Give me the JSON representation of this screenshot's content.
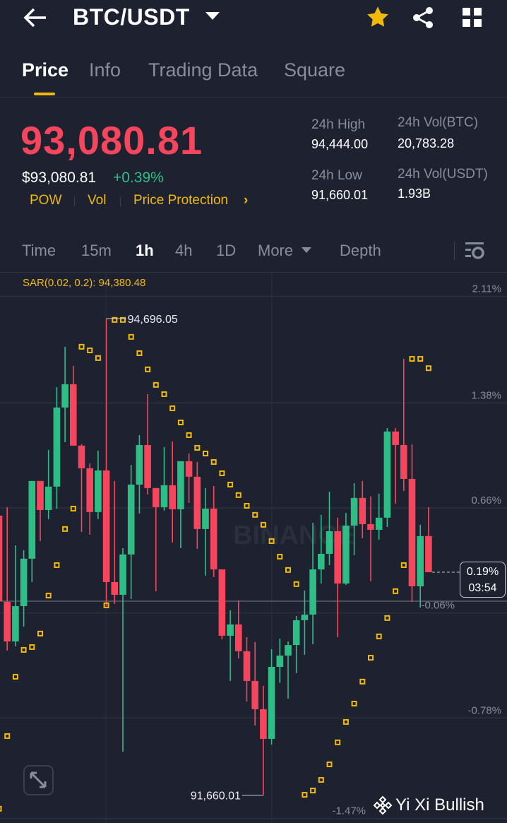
{
  "header": {
    "title": "BTC/USDT",
    "icons": [
      "back-arrow-icon",
      "caret-down-icon",
      "star-icon",
      "share-icon",
      "grid-icon"
    ],
    "favorite": true
  },
  "tabs": [
    {
      "label": "Price",
      "active": true
    },
    {
      "label": "Info"
    },
    {
      "label": "Trading Data"
    },
    {
      "label": "Square"
    }
  ],
  "ticker": {
    "last_price": "93,080.81",
    "fiat_price": "$93,080.81",
    "change": "+0.39%",
    "links": [
      "POW",
      "Vol",
      "Price Protection"
    ],
    "link_chevron": "›",
    "stats": {
      "high_label": "24h High",
      "high": "94,444.00",
      "low_label": "24h Low",
      "low": "91,660.01",
      "vol_btc_label": "24h Vol(BTC)",
      "vol_btc": "20,783.28",
      "vol_usdt_label": "24h Vol(USDT)",
      "vol_usdt": "1.93B"
    }
  },
  "timeframes": [
    {
      "label": "Time"
    },
    {
      "label": "15m"
    },
    {
      "label": "1h",
      "active": true
    },
    {
      "label": "4h"
    },
    {
      "label": "1D"
    },
    {
      "label": "More"
    },
    {
      "label": "Depth"
    }
  ],
  "colors": {
    "up": "#2ebd85",
    "down": "#f6465d",
    "accent": "#f0b90b",
    "background": "#1e2230"
  },
  "chart_data": {
    "type": "candlestick",
    "interval": "1h",
    "indicator_label": "SAR(0.02, 0.2): 94,380.48",
    "y_axis_labels": [
      "2.11%",
      "1.38%",
      "0.66%",
      "-0.06%",
      "-0.78%",
      "-1.47%"
    ],
    "y_axis_values_pct": [
      2.11,
      1.38,
      0.66,
      -0.06,
      -0.78,
      -1.47
    ],
    "max_label": "94,696.05",
    "min_label": "91,660.01",
    "current": {
      "price": 93080.81,
      "pct_label": "0.19%",
      "pct": 0.19,
      "countdown": "03:54"
    },
    "candles": [
      [
        93441,
        93463,
        92879,
        92897
      ],
      [
        92892,
        93495,
        92582,
        92640
      ],
      [
        92640,
        93252,
        92609,
        92865
      ],
      [
        92865,
        93221,
        92735,
        93167
      ],
      [
        93167,
        93662,
        93018,
        93662
      ],
      [
        93662,
        93662,
        93279,
        93477
      ],
      [
        93477,
        93860,
        93419,
        93626
      ],
      [
        93626,
        94260,
        93486,
        94130
      ],
      [
        94130,
        94517,
        93909,
        94278
      ],
      [
        94278,
        94395,
        93887,
        93887
      ],
      [
        93887,
        93896,
        93338,
        93743
      ],
      [
        93743,
        93774,
        93320,
        93464
      ],
      [
        93464,
        93855,
        93419,
        93729
      ],
      [
        93729,
        94696.05,
        92865,
        93018
      ],
      [
        93018,
        93662,
        92879,
        92937
      ],
      [
        92937,
        93234,
        91938,
        93194
      ],
      [
        93194,
        93765,
        92910,
        93639
      ],
      [
        93639,
        93954,
        93455,
        93891
      ],
      [
        93891,
        94215,
        93576,
        93617
      ],
      [
        93617,
        93617,
        92960,
        93495
      ],
      [
        93495,
        93878,
        93473,
        93635
      ],
      [
        93635,
        93914,
        93270,
        93482
      ],
      [
        93482,
        93788,
        93234,
        93788
      ],
      [
        93788,
        93837,
        93522,
        93689
      ],
      [
        93689,
        93783,
        93230,
        93356
      ],
      [
        93356,
        93617,
        93059,
        93486
      ],
      [
        93486,
        93630,
        93050,
        93099
      ],
      [
        93099,
        93099,
        92654,
        92676
      ],
      [
        92676,
        92838,
        92388,
        92748
      ],
      [
        92748,
        92901,
        92532,
        92577
      ],
      [
        92577,
        92667,
        92257,
        92388
      ],
      [
        92388,
        92636,
        92104,
        92208
      ],
      [
        92208,
        92357,
        91660.01,
        92019
      ],
      [
        92019,
        92591,
        91983,
        92478
      ],
      [
        92478,
        92658,
        92375,
        92550
      ],
      [
        92550,
        92640,
        92275,
        92617
      ],
      [
        92617,
        92802,
        92438,
        92775
      ],
      [
        92775,
        92964,
        92555,
        92811
      ],
      [
        92811,
        93396,
        92622,
        93099
      ],
      [
        93099,
        93446,
        93009,
        93198
      ],
      [
        93198,
        93594,
        93126,
        93342
      ],
      [
        93342,
        93428,
        92667,
        93009
      ],
      [
        93009,
        93459,
        93000,
        93378
      ],
      [
        93378,
        93648,
        93189,
        93554
      ],
      [
        93554,
        93662,
        93297,
        93387
      ],
      [
        93387,
        93563,
        93023,
        93351
      ],
      [
        93351,
        93581,
        93288,
        93428
      ],
      [
        93428,
        93999,
        93369,
        93977
      ],
      [
        93977,
        93999,
        93518,
        93891
      ],
      [
        93891,
        94440,
        93599,
        93675
      ],
      [
        93675,
        93896,
        92892,
        92991
      ],
      [
        92991,
        93383,
        92856,
        93311
      ],
      [
        93311,
        93495,
        93080.81,
        93080.81
      ]
    ],
    "sar": [
      91574,
      92037,
      92415,
      92586,
      92604,
      92690,
      92932,
      93126,
      93356,
      93486,
      94517,
      94494,
      94445,
      92870,
      94688,
      94688,
      94580,
      94476,
      94373,
      94274,
      94215,
      94125,
      94035,
      93954,
      93873,
      93837,
      93783,
      93711,
      93639,
      93572,
      93504,
      93446,
      93383,
      93279,
      93180,
      93095,
      93005,
      91663,
      91690,
      91758,
      91857,
      91997,
      92127,
      92244,
      92384,
      92536,
      92672,
      92789,
      92960,
      93126,
      94440,
      94440,
      94380.48
    ]
  },
  "watermark": {
    "chart": "BINANCE",
    "overlay": "Yi Xi Bullish"
  }
}
